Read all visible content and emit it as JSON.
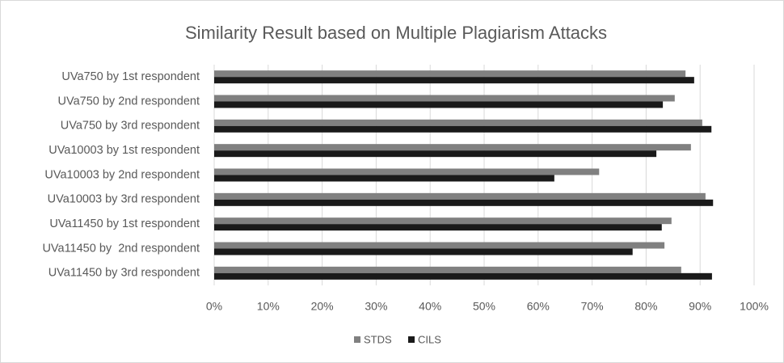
{
  "chart_data": {
    "type": "bar",
    "orientation": "horizontal",
    "title": "Similarity Result based on Multiple Plagiarism Attacks",
    "categories": [
      "UVa750 by 1st respondent",
      "UVa750 by 2nd respondent",
      "UVa750 by 3rd respondent",
      "UVa10003 by 1st respondent",
      "UVa10003 by 2nd respondent",
      "UVa10003 by 3rd respondent",
      "UVa11450 by 1st respondent",
      "UVa11450 by  2nd respondent",
      "UVa11450 by 3rd respondent"
    ],
    "series": [
      {
        "name": "STDS",
        "color": "#808080",
        "values": [
          87.3,
          85.3,
          90.4,
          88.3,
          71.3,
          91.0,
          84.7,
          83.4,
          86.5
        ]
      },
      {
        "name": "CILS",
        "color": "#1a1a1a",
        "values": [
          88.9,
          83.1,
          92.1,
          81.9,
          63.0,
          92.4,
          82.9,
          77.5,
          92.2
        ]
      }
    ],
    "xlim": [
      0,
      100
    ],
    "xticks": [
      {
        "value": 0,
        "label": "0%"
      },
      {
        "value": 10,
        "label": "10%"
      },
      {
        "value": 20,
        "label": "20%"
      },
      {
        "value": 30,
        "label": "30%"
      },
      {
        "value": 40,
        "label": "40%"
      },
      {
        "value": 50,
        "label": "50%"
      },
      {
        "value": 60,
        "label": "60%"
      },
      {
        "value": 70,
        "label": "70%"
      },
      {
        "value": 80,
        "label": "80%"
      },
      {
        "value": 90,
        "label": "90%"
      },
      {
        "value": 100,
        "label": "100%"
      }
    ],
    "grid": true,
    "legend": "bottom"
  }
}
